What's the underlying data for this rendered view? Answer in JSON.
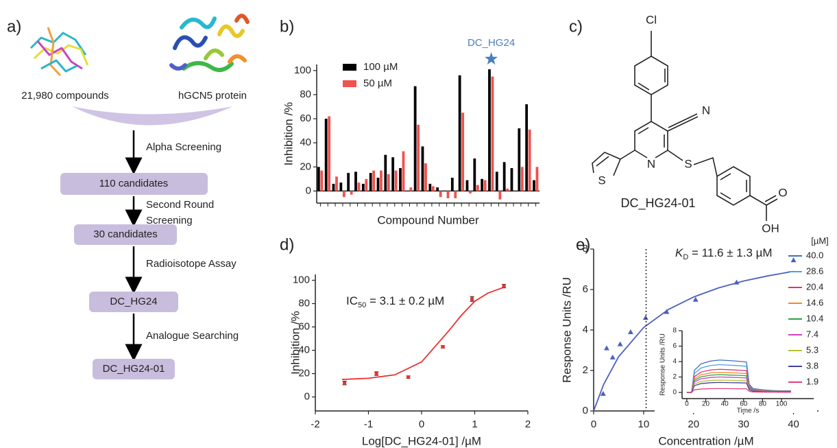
{
  "panel_labels": [
    "a)",
    "b)",
    "c)",
    "d)",
    "e)"
  ],
  "flowchart": {
    "inputs": [
      "21,980 compounds",
      "hGCN5 protein"
    ],
    "steps": [
      [
        "Alpha Screening"
      ],
      [
        "Second Round",
        "Screening"
      ],
      [
        "Radioisotope Assay"
      ],
      [
        "Analogue Searching"
      ]
    ],
    "boxes": [
      "110 candidates",
      "30 candidates",
      "DC_HG24",
      "DC_HG24-01"
    ]
  },
  "structure": {
    "atoms": [
      "Cl",
      "N",
      "N",
      "S",
      "S",
      "O",
      "OH"
    ],
    "name": "DC_HG24-01"
  },
  "chart_data": [
    {
      "type": "bar",
      "x_label": "Compound Number",
      "y_label": "Inhibition /%",
      "categories": [
        null,
        null,
        null,
        null,
        null,
        null,
        null,
        null,
        null,
        null,
        null,
        null,
        null,
        null,
        null,
        null,
        null,
        null,
        null,
        null,
        null,
        null,
        null,
        null,
        null,
        null,
        null,
        null,
        null,
        null
      ],
      "series": [
        {
          "name": "100 µM",
          "color": "#000000",
          "values": [
            20,
            60,
            6,
            7,
            15,
            16,
            6,
            15,
            11,
            30,
            28,
            19,
            0,
            87,
            37,
            6,
            3,
            0,
            11,
            96,
            9,
            27,
            10,
            101,
            16,
            24,
            19,
            52,
            72,
            9
          ]
        },
        {
          "name": "50 µM",
          "color": "#f0524f",
          "values": [
            17,
            62,
            12,
            -5,
            -3,
            7,
            10,
            17,
            17,
            14,
            17,
            33,
            3,
            55,
            23,
            4,
            -5,
            -6,
            -6,
            65,
            -2,
            5,
            9,
            95,
            -7,
            2,
            0,
            20,
            51,
            20
          ]
        }
      ],
      "ylim": [
        -10,
        105
      ],
      "yticks": [
        0,
        20,
        40,
        60,
        80,
        100
      ],
      "annotation": {
        "text": "DC_HG24",
        "color": "#4a7fc1"
      }
    },
    {
      "type": "scatter",
      "x_label": "Log[DC_HG24-01] /µM",
      "y_label": "Inhibition /%",
      "color": "#e8312f",
      "annotation": {
        "main": "IC",
        "sub": "50",
        "rest": " = 3.1 ± 0.2 µM"
      },
      "points": {
        "x": [
          -1.45,
          -0.85,
          -0.25,
          0.4,
          0.95,
          1.55
        ],
        "values": [
          12,
          20,
          17,
          43,
          84,
          95
        ],
        "errors": [
          1.5,
          1.5,
          1,
          1,
          2,
          1.5
        ]
      },
      "fit": {
        "x": [
          -1.5,
          -1,
          -0.5,
          0,
          0.25,
          0.5,
          0.75,
          1,
          1.25,
          1.55
        ],
        "values": [
          15,
          16,
          19,
          30,
          43,
          56,
          70,
          82,
          89,
          94
        ]
      },
      "xlim": [
        -2,
        2
      ],
      "xticks": [
        -2,
        -1,
        0,
        1,
        2
      ],
      "ylim": [
        -12,
        105
      ],
      "yticks": [
        0,
        20,
        40,
        60,
        80,
        100
      ]
    },
    {
      "type": "scatter",
      "x_label": "Concentration /µM",
      "y_label": "Response Units /RU",
      "color": "#4b5fc0",
      "annotation": {
        "main": "K",
        "sub": "D",
        "rest": " = 11.6 ± 1.3 µM"
      },
      "points": {
        "x": [
          1.9,
          2.6,
          3.8,
          5.3,
          7.4,
          10.4,
          14.6,
          20.4,
          28.6,
          40
        ],
        "values": [
          0.85,
          3.1,
          2.65,
          3.3,
          3.9,
          4.6,
          4.9,
          5.5,
          6.35,
          7.45
        ]
      },
      "fit": {
        "x": [
          0,
          2,
          5,
          10,
          15,
          20,
          25,
          30,
          35,
          40
        ],
        "values": [
          0,
          1.31,
          2.68,
          4.12,
          5.02,
          5.63,
          6.08,
          6.42,
          6.68,
          6.9
        ]
      },
      "vline": 10.5,
      "xlim": [
        0,
        45
      ],
      "xticks": [
        0,
        10,
        20,
        30,
        40
      ],
      "ylim": [
        0,
        8
      ],
      "yticks": [
        0,
        2,
        4,
        6,
        8
      ],
      "inset": {
        "type": "line",
        "x_label": "Time /s",
        "y_label": "Response Units /RU",
        "legend_title": "[µM]",
        "x": [
          0,
          5,
          8,
          15,
          25,
          35,
          45,
          55,
          63,
          66,
          70,
          80,
          90,
          100,
          110
        ],
        "xlim": [
          -5,
          134
        ],
        "xticks": [
          0,
          20,
          40,
          60,
          80,
          100
        ],
        "ylim": [
          -0.8,
          8
        ],
        "yticks": [
          0,
          2,
          4,
          6,
          8
        ],
        "series": [
          {
            "name": "40.0",
            "color": "#3a6fc4",
            "values": [
              0,
              0,
              2.86,
              3.7,
              4.07,
              4.2,
              4.12,
              4.03,
              3.95,
              1.05,
              0.5,
              0.34,
              0.25,
              0.21,
              0.21
            ]
          },
          {
            "name": "28.6",
            "color": "#4aa3e0",
            "values": [
              0,
              0,
              2.45,
              3.17,
              3.49,
              3.6,
              3.53,
              3.46,
              3.38,
              0.9,
              0.43,
              0.29,
              0.22,
              0.18,
              0.18
            ]
          },
          {
            "name": "20.4",
            "color": "#e0307a",
            "values": [
              0,
              0,
              2.04,
              2.64,
              2.91,
              3.0,
              2.94,
              2.88,
              2.82,
              0.75,
              0.36,
              0.24,
              0.18,
              0.15,
              0.15
            ]
          },
          {
            "name": "14.6",
            "color": "#f08a24",
            "values": [
              0,
              0,
              1.77,
              2.29,
              2.52,
              2.6,
              2.55,
              2.5,
              2.44,
              0.65,
              0.31,
              0.21,
              0.16,
              0.13,
              0.13
            ]
          },
          {
            "name": "10.4",
            "color": "#30a040",
            "values": [
              0,
              0,
              1.56,
              2.02,
              2.23,
              2.3,
              2.25,
              2.21,
              2.16,
              0.58,
              0.28,
              0.18,
              0.14,
              0.12,
              0.12
            ]
          },
          {
            "name": "7.4",
            "color": "#d040c0",
            "values": [
              0,
              0,
              1.36,
              1.76,
              1.94,
              2.0,
              1.96,
              1.92,
              1.88,
              0.5,
              0.24,
              0.16,
              0.12,
              0.1,
              0.1
            ]
          },
          {
            "name": "5.3",
            "color": "#b8c030",
            "values": [
              0,
              0,
              1.09,
              1.41,
              1.55,
              1.6,
              1.57,
              1.54,
              1.5,
              0.4,
              0.19,
              0.13,
              0.1,
              0.08,
              0.08
            ]
          },
          {
            "name": "3.8",
            "color": "#4040a0",
            "values": [
              0,
              0,
              0.88,
              1.14,
              1.26,
              1.3,
              1.27,
              1.25,
              1.22,
              0.33,
              0.16,
              0.1,
              0.08,
              0.07,
              0.07
            ]
          },
          {
            "name": "1.9",
            "color": "#e04080",
            "values": [
              0,
              0,
              0.34,
              0.44,
              0.49,
              0.5,
              0.49,
              0.48,
              0.47,
              0.13,
              0.06,
              0.04,
              0.03,
              0.03,
              0.03
            ]
          }
        ]
      }
    }
  ]
}
